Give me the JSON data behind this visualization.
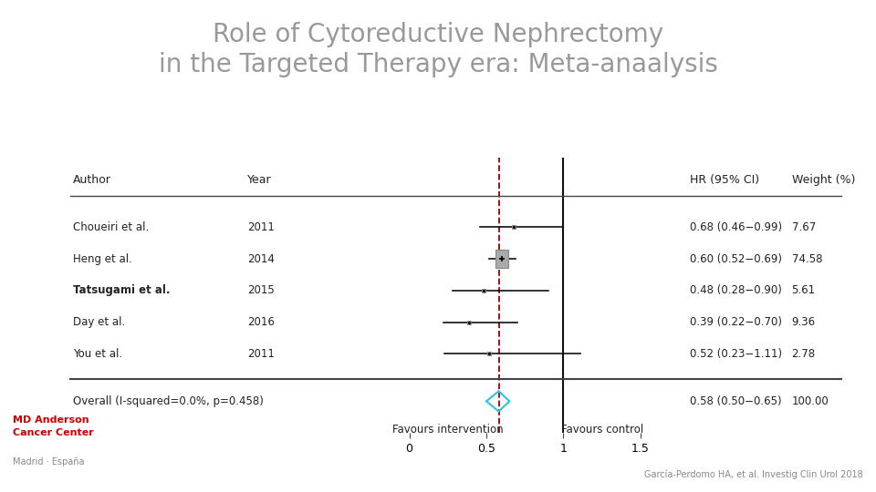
{
  "title_line1": "Role of Cytoreductive Nephrectomy",
  "title_line2": "in the Targeted Therapy era: Meta-anaalysis",
  "title_color": "#999999",
  "title_fontsize": 20,
  "background_color": "#ffffff",
  "studies": [
    {
      "author": "Choueiri et al.",
      "year": "2011",
      "hr": 0.68,
      "ci_low": 0.46,
      "ci_high": 0.99,
      "weight": 7.67,
      "hr_text": "0.68 (0.46−0.99)",
      "weight_text": "7.67",
      "bold": false
    },
    {
      "author": "Heng et al.",
      "year": "2014",
      "hr": 0.6,
      "ci_low": 0.52,
      "ci_high": 0.69,
      "weight": 74.58,
      "hr_text": "0.60 (0.52−0.69)",
      "weight_text": "74.58",
      "bold": false
    },
    {
      "author": "Tatsugami et al.",
      "year": "2015",
      "hr": 0.48,
      "ci_low": 0.28,
      "ci_high": 0.9,
      "weight": 5.61,
      "hr_text": "0.48 (0.28−0.90)",
      "weight_text": "5.61",
      "bold": true
    },
    {
      "author": "Day et al.",
      "year": "2016",
      "hr": 0.39,
      "ci_low": 0.22,
      "ci_high": 0.7,
      "weight": 9.36,
      "hr_text": "0.39 (0.22−0.70)",
      "weight_text": "9.36",
      "bold": false
    },
    {
      "author": "You et al.",
      "year": "2011",
      "hr": 0.52,
      "ci_low": 0.23,
      "ci_high": 1.11,
      "weight": 2.78,
      "hr_text": "0.52 (0.23−1.11)",
      "weight_text": "2.78",
      "bold": false
    }
  ],
  "overall": {
    "label": "Overall (I-squared=0.0%, p=0.458)",
    "hr": 0.58,
    "ci_low": 0.5,
    "ci_high": 0.65,
    "hr_text": "0.58 (0.50−0.65)",
    "weight_text": "100.00"
  },
  "ref_line_x": 0.58,
  "vline_x": 1.0,
  "x_ticks": [
    0,
    0.5,
    1,
    1.5
  ],
  "x_tick_labels": [
    "0",
    "0.5",
    "1",
    "1.5"
  ],
  "plot_xlim": [
    -0.05,
    1.75
  ],
  "xlabel_left": "Favours intervention",
  "xlabel_right": "Favours control",
  "col_header_author": "Author",
  "col_header_year": "Year",
  "col_header_hr": "HR (95% CI)",
  "col_header_weight": "Weight (%)",
  "box_color": "#aaaaaa",
  "box_edge_color": "#888888",
  "diamond_edge_color": "#26c6da",
  "ci_line_color": "#111111",
  "ref_dashed_color": "#990000",
  "vline_color": "#111111",
  "text_color": "#222222",
  "hline_color": "#444444",
  "logo_color": "#cc0000",
  "logo_loc_color": "#888888",
  "citation_color": "#888888",
  "logo_text_loc": "Madrid · España",
  "citation": "García-Perdomo HA, et al. Investig Clin Urol 2018"
}
